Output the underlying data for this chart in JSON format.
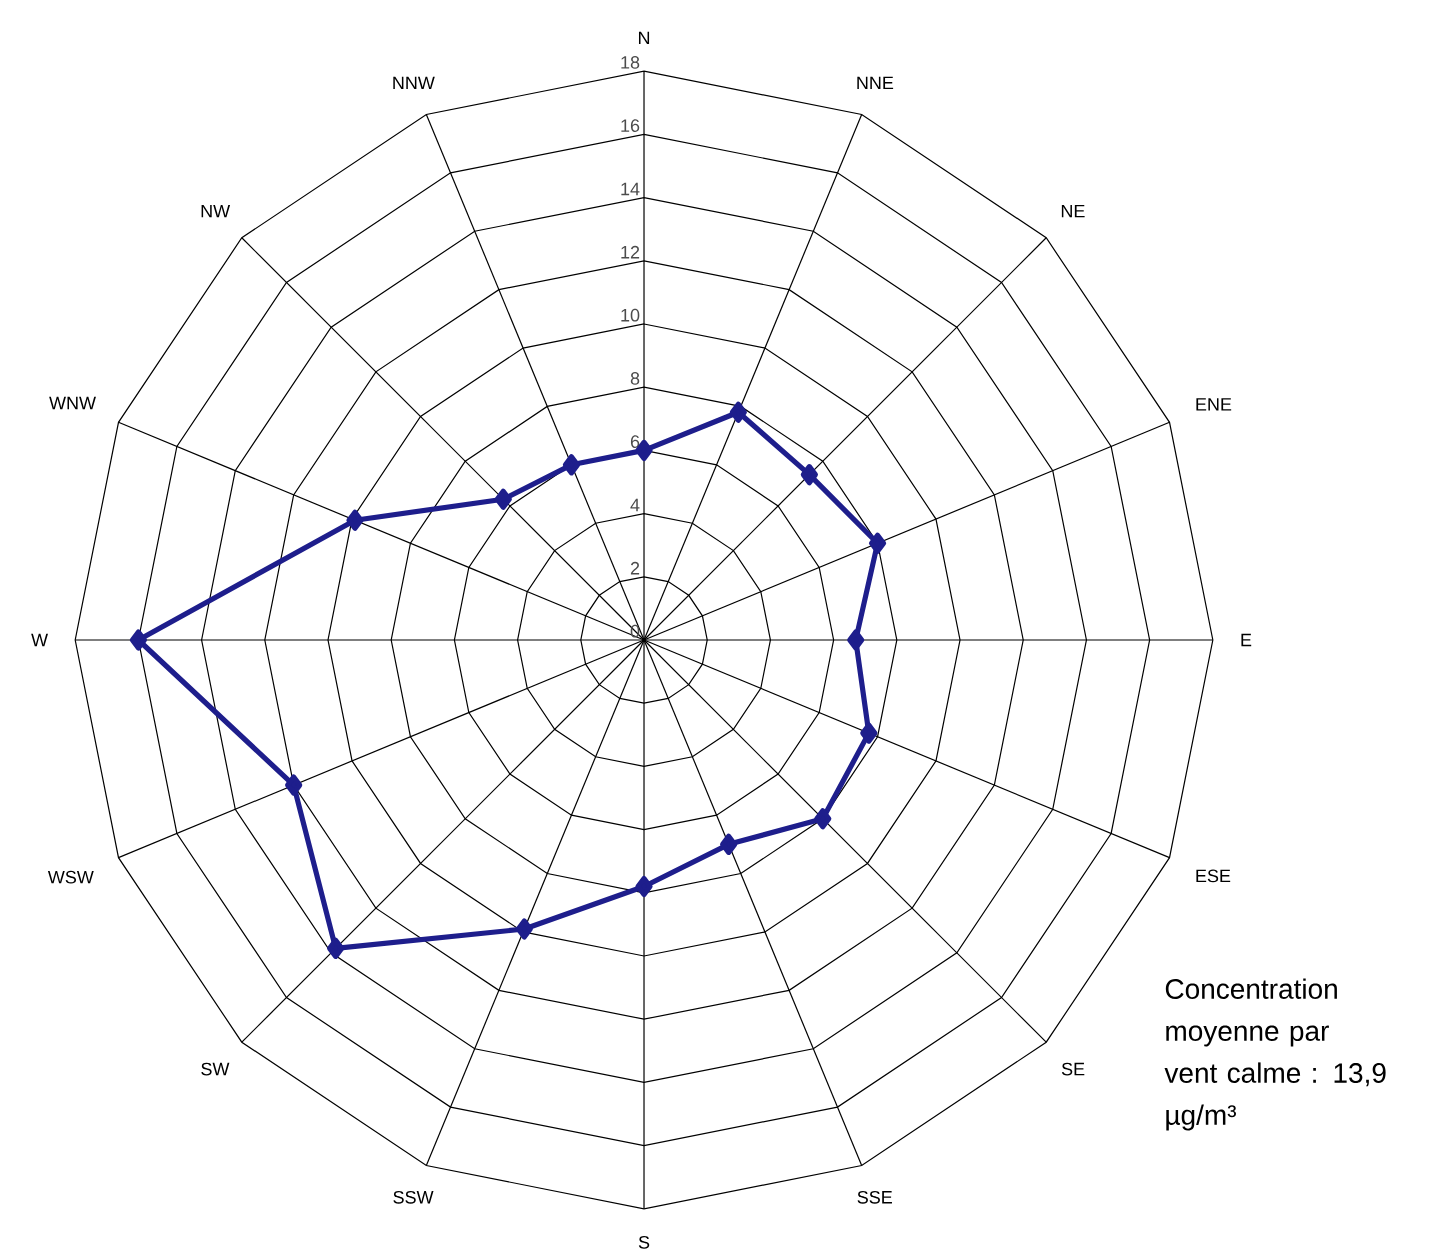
{
  "chart_data": {
    "type": "radar",
    "categories": [
      "N",
      "NNE",
      "NE",
      "ENE",
      "E",
      "ESE",
      "SE",
      "SSE",
      "S",
      "SSW",
      "SW",
      "WSW",
      "W",
      "WNW",
      "NW",
      "NNW"
    ],
    "series": [
      {
        "color": "#1e1e8c",
        "values": [
          6.0,
          7.8,
          7.4,
          8.0,
          6.7,
          7.7,
          8.0,
          7.0,
          7.8,
          9.9,
          13.8,
          12.0,
          16.0,
          9.9,
          6.3,
          6.0
        ]
      }
    ],
    "ylim": [
      0,
      18
    ],
    "yticks": [
      0,
      2,
      4,
      6,
      8,
      10,
      12,
      14,
      16,
      18
    ],
    "grid": true,
    "marker": "diamond",
    "line_style": "solid",
    "annotations": [
      "Concentration moyenne par vent calme : 13,9 µg/m³"
    ]
  }
}
